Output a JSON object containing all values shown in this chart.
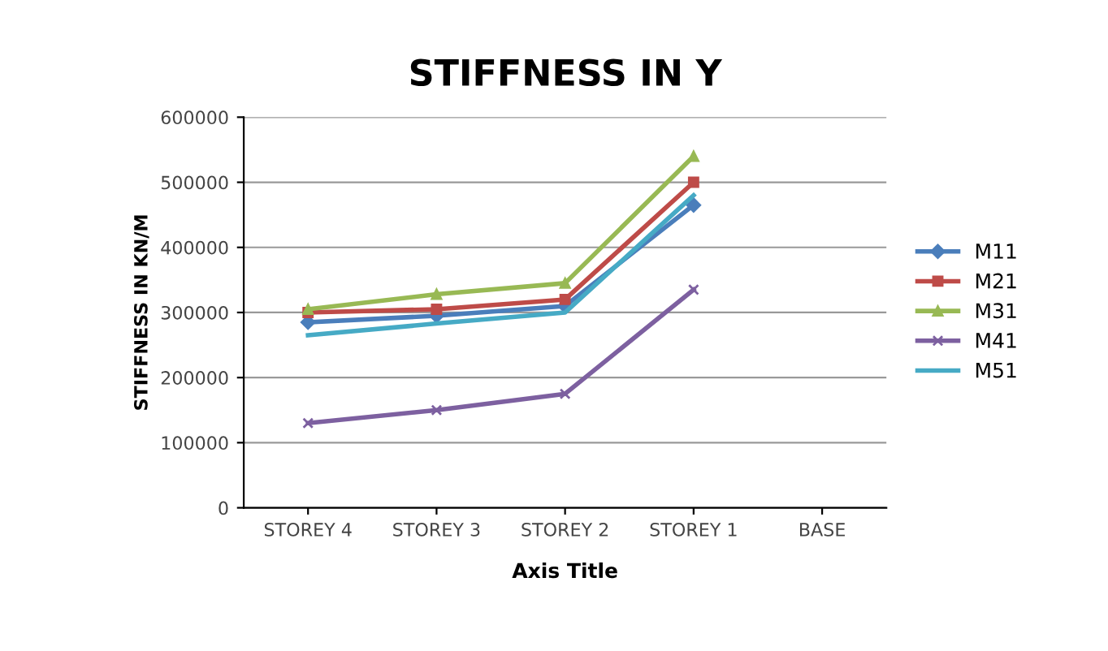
{
  "chart_data": {
    "type": "line",
    "title": "STIFFNESS IN Y",
    "xlabel": "Axis Title",
    "ylabel": "STIFFNESS IN KN/M",
    "categories": [
      "STOREY 4",
      "STOREY 3",
      "STOREY 2",
      "STOREY 1",
      "BASE"
    ],
    "series": [
      {
        "name": "M11",
        "color": "#4a7ebb",
        "marker": "diamond",
        "values": [
          285000,
          295000,
          310000,
          465000,
          null
        ]
      },
      {
        "name": "M21",
        "color": "#be4b48",
        "marker": "square",
        "values": [
          300000,
          305000,
          320000,
          500000,
          null
        ]
      },
      {
        "name": "M31",
        "color": "#98b954",
        "marker": "triangle",
        "values": [
          305000,
          328000,
          345000,
          540000,
          null
        ]
      },
      {
        "name": "M41",
        "color": "#7d60a0",
        "marker": "cross",
        "values": [
          130000,
          150000,
          175000,
          335000,
          null
        ]
      },
      {
        "name": "M51",
        "color": "#46aac5",
        "marker": "none",
        "values": [
          265000,
          283000,
          300000,
          480000,
          null
        ]
      }
    ],
    "ylim": [
      0,
      600000
    ],
    "yticks": [
      0,
      100000,
      200000,
      300000,
      400000,
      500000,
      600000
    ],
    "grid": "y",
    "legend": "right"
  }
}
